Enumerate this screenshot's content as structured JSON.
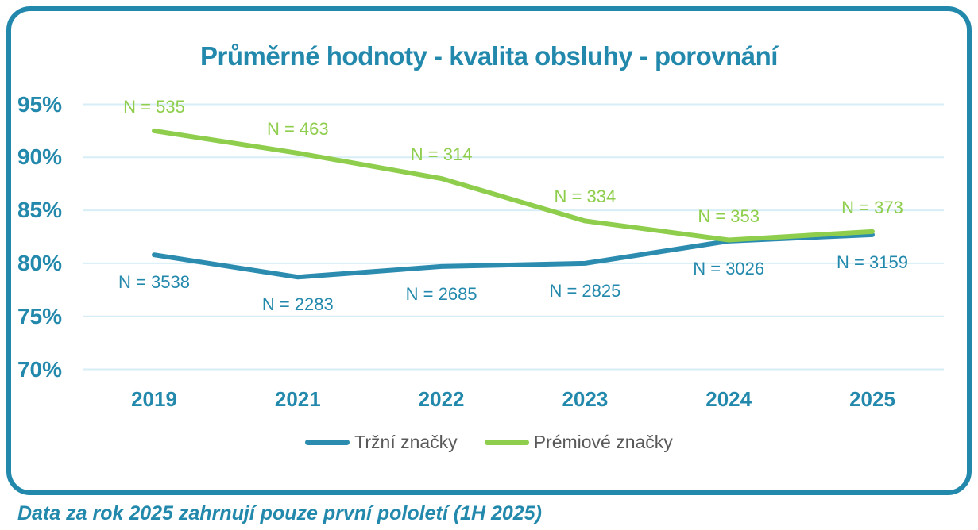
{
  "title": "Průměrné hodnoty - kvalita obsluhy - porovnání",
  "footer": "Data za rok 2025 zahrnují pouze první pololetí (1H 2025)",
  "colors": {
    "accent": "#2389AC",
    "market_line": "#2B8CB0",
    "premium_line": "#8FCE4D",
    "gridline": "#D7EEF6",
    "legend_text": "#595959",
    "background": "#ffffff"
  },
  "chart_data": {
    "type": "line",
    "title": "Průměrné hodnoty - kvalita obsluhy - porovnání",
    "categories": [
      "2019",
      "2021",
      "2022",
      "2023",
      "2024",
      "2025"
    ],
    "y_ticks": [
      "95%",
      "90%",
      "85%",
      "80%",
      "75%",
      "70%"
    ],
    "y_tick_values": [
      95,
      90,
      85,
      80,
      75,
      70
    ],
    "ylim": [
      70,
      95
    ],
    "ylabel": "",
    "xlabel": "",
    "grid": true,
    "legend_position": "bottom",
    "series": [
      {
        "name": "Tržní značky",
        "color": "#2B8CB0",
        "values": [
          80.8,
          78.7,
          79.7,
          80.0,
          82.1,
          82.7
        ],
        "n_labels": [
          "N = 3538",
          "N = 2283",
          "N = 2685",
          "N = 2825",
          "N = 3026",
          "N = 3159"
        ],
        "label_side": "below"
      },
      {
        "name": "Prémiové značky",
        "color": "#8FCE4D",
        "values": [
          92.5,
          90.4,
          88.0,
          84.0,
          82.2,
          83.0
        ],
        "n_labels": [
          "N = 535",
          "N = 463",
          "N = 314",
          "N = 334",
          "N = 353",
          "N = 373"
        ],
        "label_side": "above"
      }
    ]
  }
}
